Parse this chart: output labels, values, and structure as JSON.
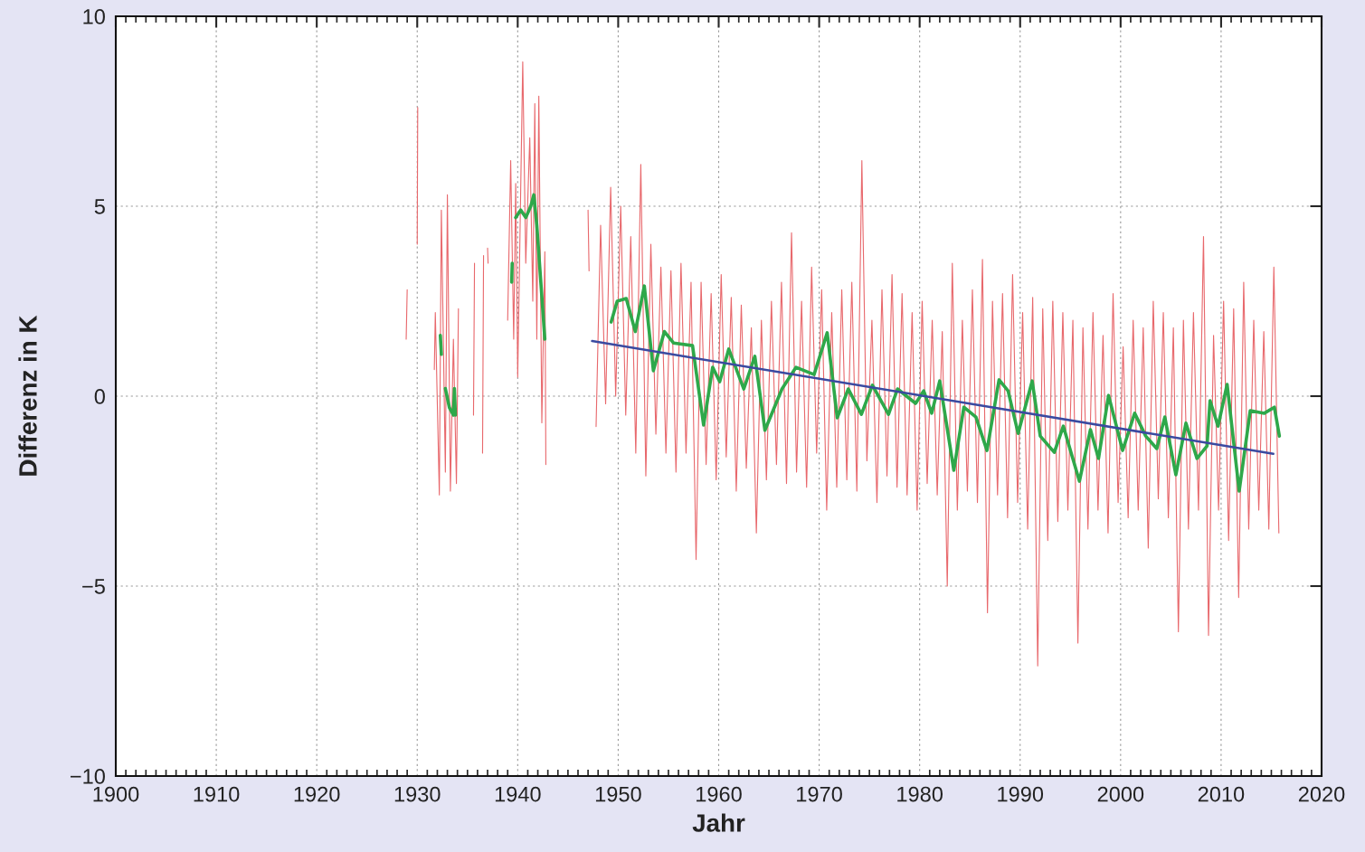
{
  "chart_data": {
    "type": "line",
    "xlabel": "Jahr",
    "ylabel": "Differenz in K",
    "xlim": [
      1900,
      2020
    ],
    "xticks": [
      1900,
      1910,
      1920,
      1930,
      1940,
      1950,
      1960,
      1970,
      1980,
      1990,
      2000,
      2010,
      2020
    ],
    "ylim": [
      -10,
      10
    ],
    "yticks": [
      {
        "value": -10,
        "label": "−10"
      },
      {
        "value": -5,
        "label": "−5"
      },
      0,
      5,
      10
    ],
    "grid": true,
    "marker": "none",
    "line_style": "solid",
    "series": [
      {
        "color": "#e8686c",
        "x": [
          1928.9,
          1929.0,
          1929.5,
          1930.0,
          1930.05,
          1931.0,
          1931.7,
          1931.8,
          1932.2,
          1932.4,
          1932.8,
          1933.0,
          1933.3,
          1933.6,
          1933.9,
          1934.1,
          1935.0,
          1935.6,
          1935.7,
          1936.1,
          1936.5,
          1936.6,
          1936.8,
          1937.0,
          1937.05,
          1938.0,
          1939.0,
          1939.3,
          1939.6,
          1939.8,
          1940.0,
          1940.5,
          1940.8,
          1941.2,
          1941.5,
          1941.7,
          1941.9,
          1942.1,
          1942.4,
          1942.7,
          1942.8,
          1945.0,
          1947.0,
          1947.1,
          1947.5,
          1947.8,
          1948.0,
          1948.25,
          1948.75,
          1949.25,
          1949.75,
          1950.25,
          1950.75,
          1951.25,
          1951.75,
          1952.25,
          1952.75,
          1953.25,
          1953.75,
          1954.25,
          1954.75,
          1955.25,
          1955.75,
          1956.25,
          1956.75,
          1957.25,
          1957.75,
          1958.25,
          1958.75,
          1959.25,
          1959.75,
          1960.25,
          1960.75,
          1961.25,
          1961.75,
          1962.25,
          1962.75,
          1963.25,
          1963.75,
          1964.25,
          1964.75,
          1965.25,
          1965.75,
          1966.25,
          1966.75,
          1967.25,
          1967.75,
          1968.25,
          1968.75,
          1969.25,
          1969.75,
          1970.25,
          1970.75,
          1971.25,
          1971.75,
          1972.25,
          1972.75,
          1973.25,
          1973.75,
          1974.25,
          1974.75,
          1975.25,
          1975.75,
          1976.25,
          1976.75,
          1977.25,
          1977.75,
          1978.25,
          1978.75,
          1979.25,
          1979.75,
          1980.25,
          1980.75,
          1981.25,
          1981.75,
          1982.25,
          1982.75,
          1983.25,
          1983.75,
          1984.25,
          1984.75,
          1985.25,
          1985.75,
          1986.25,
          1986.75,
          1987.25,
          1987.75,
          1988.25,
          1988.75,
          1989.25,
          1989.75,
          1990.25,
          1990.75,
          1991.25,
          1991.75,
          1992.25,
          1992.75,
          1993.25,
          1993.75,
          1994.25,
          1994.75,
          1995.25,
          1995.75,
          1996.25,
          1996.75,
          1997.25,
          1997.75,
          1998.25,
          1998.75,
          1999.25,
          1999.75,
          2000.25,
          2000.75,
          2001.25,
          2001.75,
          2002.25,
          2002.75,
          2003.25,
          2003.75,
          2004.25,
          2004.75,
          2005.25,
          2005.75,
          2006.25,
          2006.75,
          2007.25,
          2007.75,
          2008.25,
          2008.75,
          2009.25,
          2009.75,
          2010.25,
          2010.75,
          2011.25,
          2011.75,
          2012.25,
          2012.75,
          2013.25,
          2013.75,
          2014.25,
          2014.75,
          2015.25,
          2015.75
        ],
        "values": [
          1.5,
          2.8,
          null,
          4.0,
          7.6,
          null,
          0.7,
          2.2,
          -2.6,
          4.9,
          -2.0,
          5.3,
          -2.5,
          1.5,
          -2.3,
          2.3,
          null,
          -0.5,
          3.5,
          null,
          -1.5,
          3.7,
          null,
          3.9,
          3.5,
          null,
          2.0,
          6.2,
          1.5,
          5.6,
          0.5,
          8.8,
          3.5,
          6.8,
          2.5,
          7.7,
          1.5,
          7.9,
          -0.7,
          3.8,
          -1.8,
          null,
          4.9,
          3.3,
          null,
          -0.8,
          1.6,
          4.5,
          -0.2,
          5.5,
          0.0,
          5.0,
          -0.5,
          4.2,
          -1.5,
          6.1,
          -2.1,
          4.0,
          -1.0,
          3.4,
          -1.5,
          3.3,
          -2.0,
          3.5,
          -1.5,
          3.0,
          -4.3,
          3.0,
          -1.8,
          2.7,
          -2.2,
          3.2,
          -1.6,
          2.6,
          -2.5,
          2.4,
          -1.9,
          1.8,
          -3.6,
          2.0,
          -2.2,
          2.5,
          -1.8,
          3.0,
          -2.3,
          4.3,
          -2.0,
          2.5,
          -2.4,
          3.4,
          -1.5,
          2.8,
          -3.0,
          2.2,
          -2.4,
          2.8,
          -2.2,
          3.0,
          -2.5,
          6.2,
          -1.7,
          2.0,
          -2.8,
          2.8,
          -2.1,
          3.2,
          -2.4,
          2.7,
          -2.6,
          2.2,
          -3.0,
          2.5,
          -2.3,
          2.0,
          -2.6,
          1.7,
          -5.0,
          3.5,
          -3.0,
          2.0,
          -2.5,
          2.8,
          -2.8,
          3.6,
          -5.7,
          2.5,
          -2.6,
          2.7,
          -3.2,
          3.2,
          -2.8,
          2.2,
          -3.5,
          2.6,
          -7.1,
          2.3,
          -3.8,
          2.5,
          -3.3,
          2.2,
          -3.0,
          2.0,
          -6.5,
          1.8,
          -3.5,
          2.2,
          -3.0,
          1.6,
          -3.6,
          2.7,
          -2.8,
          1.3,
          -3.2,
          2.0,
          -3.0,
          1.8,
          -4.0,
          2.5,
          -2.7,
          2.2,
          -3.2,
          1.8,
          -6.2,
          2.0,
          -3.5,
          2.2,
          -3.0,
          4.2,
          -6.3,
          1.6,
          -3.0,
          2.5,
          -3.8,
          2.3,
          -5.3,
          3.0,
          -3.5,
          2.0,
          -3.0,
          1.7,
          -3.5,
          3.4,
          -3.6
        ]
      },
      {
        "color": "#2ea84a",
        "x": [
          1932.3,
          1932.4,
          1932.6,
          1932.8,
          1933.2,
          1933.6,
          1933.7,
          1933.8,
          1936.0,
          1939.4,
          1939.45,
          1939.6,
          1939.8,
          1940.3,
          1940.8,
          1941.3,
          1941.6,
          1941.9,
          1942.3,
          1942.7,
          1946.0,
          1949.3,
          1949.9,
          1950.8,
          1951.7,
          1952.6,
          1953.5,
          1954.6,
          1955.5,
          1957.4,
          1958.5,
          1959.4,
          1960.1,
          1961.0,
          1962.5,
          1963.6,
          1964.6,
          1966.3,
          1967.7,
          1969.5,
          1970.8,
          1971.8,
          1972.9,
          1974.2,
          1975.3,
          1976.9,
          1977.8,
          1979.6,
          1980.4,
          1981.2,
          1982.0,
          1983.4,
          1984.4,
          1985.6,
          1986.7,
          1987.9,
          1988.8,
          1989.8,
          1991.2,
          1992.0,
          1993.4,
          1994.3,
          1995.9,
          1997.0,
          1997.8,
          1998.8,
          2000.2,
          2001.4,
          2002.5,
          2003.6,
          2004.4,
          2005.5,
          2006.5,
          2007.6,
          2008.6,
          2008.9,
          2009.7,
          2010.6,
          2011.8,
          2012.9,
          2014.3,
          2015.3,
          2015.8
        ],
        "values": [
          1.6,
          1.1,
          null,
          0.2,
          -0.3,
          -0.5,
          0.2,
          -0.5,
          null,
          3.0,
          3.5,
          null,
          4.7,
          4.9,
          4.7,
          5.0,
          5.3,
          4.5,
          3.0,
          1.5,
          null,
          1.95,
          2.5,
          2.57,
          1.7,
          2.9,
          0.67,
          1.7,
          1.4,
          1.33,
          -0.76,
          0.76,
          0.38,
          1.24,
          0.19,
          1.05,
          -0.9,
          0.19,
          0.76,
          0.57,
          1.67,
          -0.57,
          0.19,
          -0.48,
          0.29,
          -0.48,
          0.19,
          -0.19,
          0.14,
          -0.45,
          0.4,
          -1.95,
          -0.29,
          -0.55,
          -1.43,
          0.43,
          0.14,
          -0.98,
          0.4,
          -1.05,
          -1.48,
          -0.79,
          -2.24,
          -0.88,
          -1.64,
          0.02,
          -1.43,
          -0.45,
          -1.05,
          -1.38,
          -0.55,
          -2.07,
          -0.71,
          -1.64,
          -1.31,
          -0.12,
          -0.79,
          0.31,
          -2.5,
          -0.38,
          -0.45,
          -0.29,
          -1.05
        ]
      },
      {
        "color": "#3a4aa0",
        "x": [
          1947.4,
          2015.2
        ],
        "values": [
          1.45,
          -1.52
        ]
      }
    ]
  }
}
